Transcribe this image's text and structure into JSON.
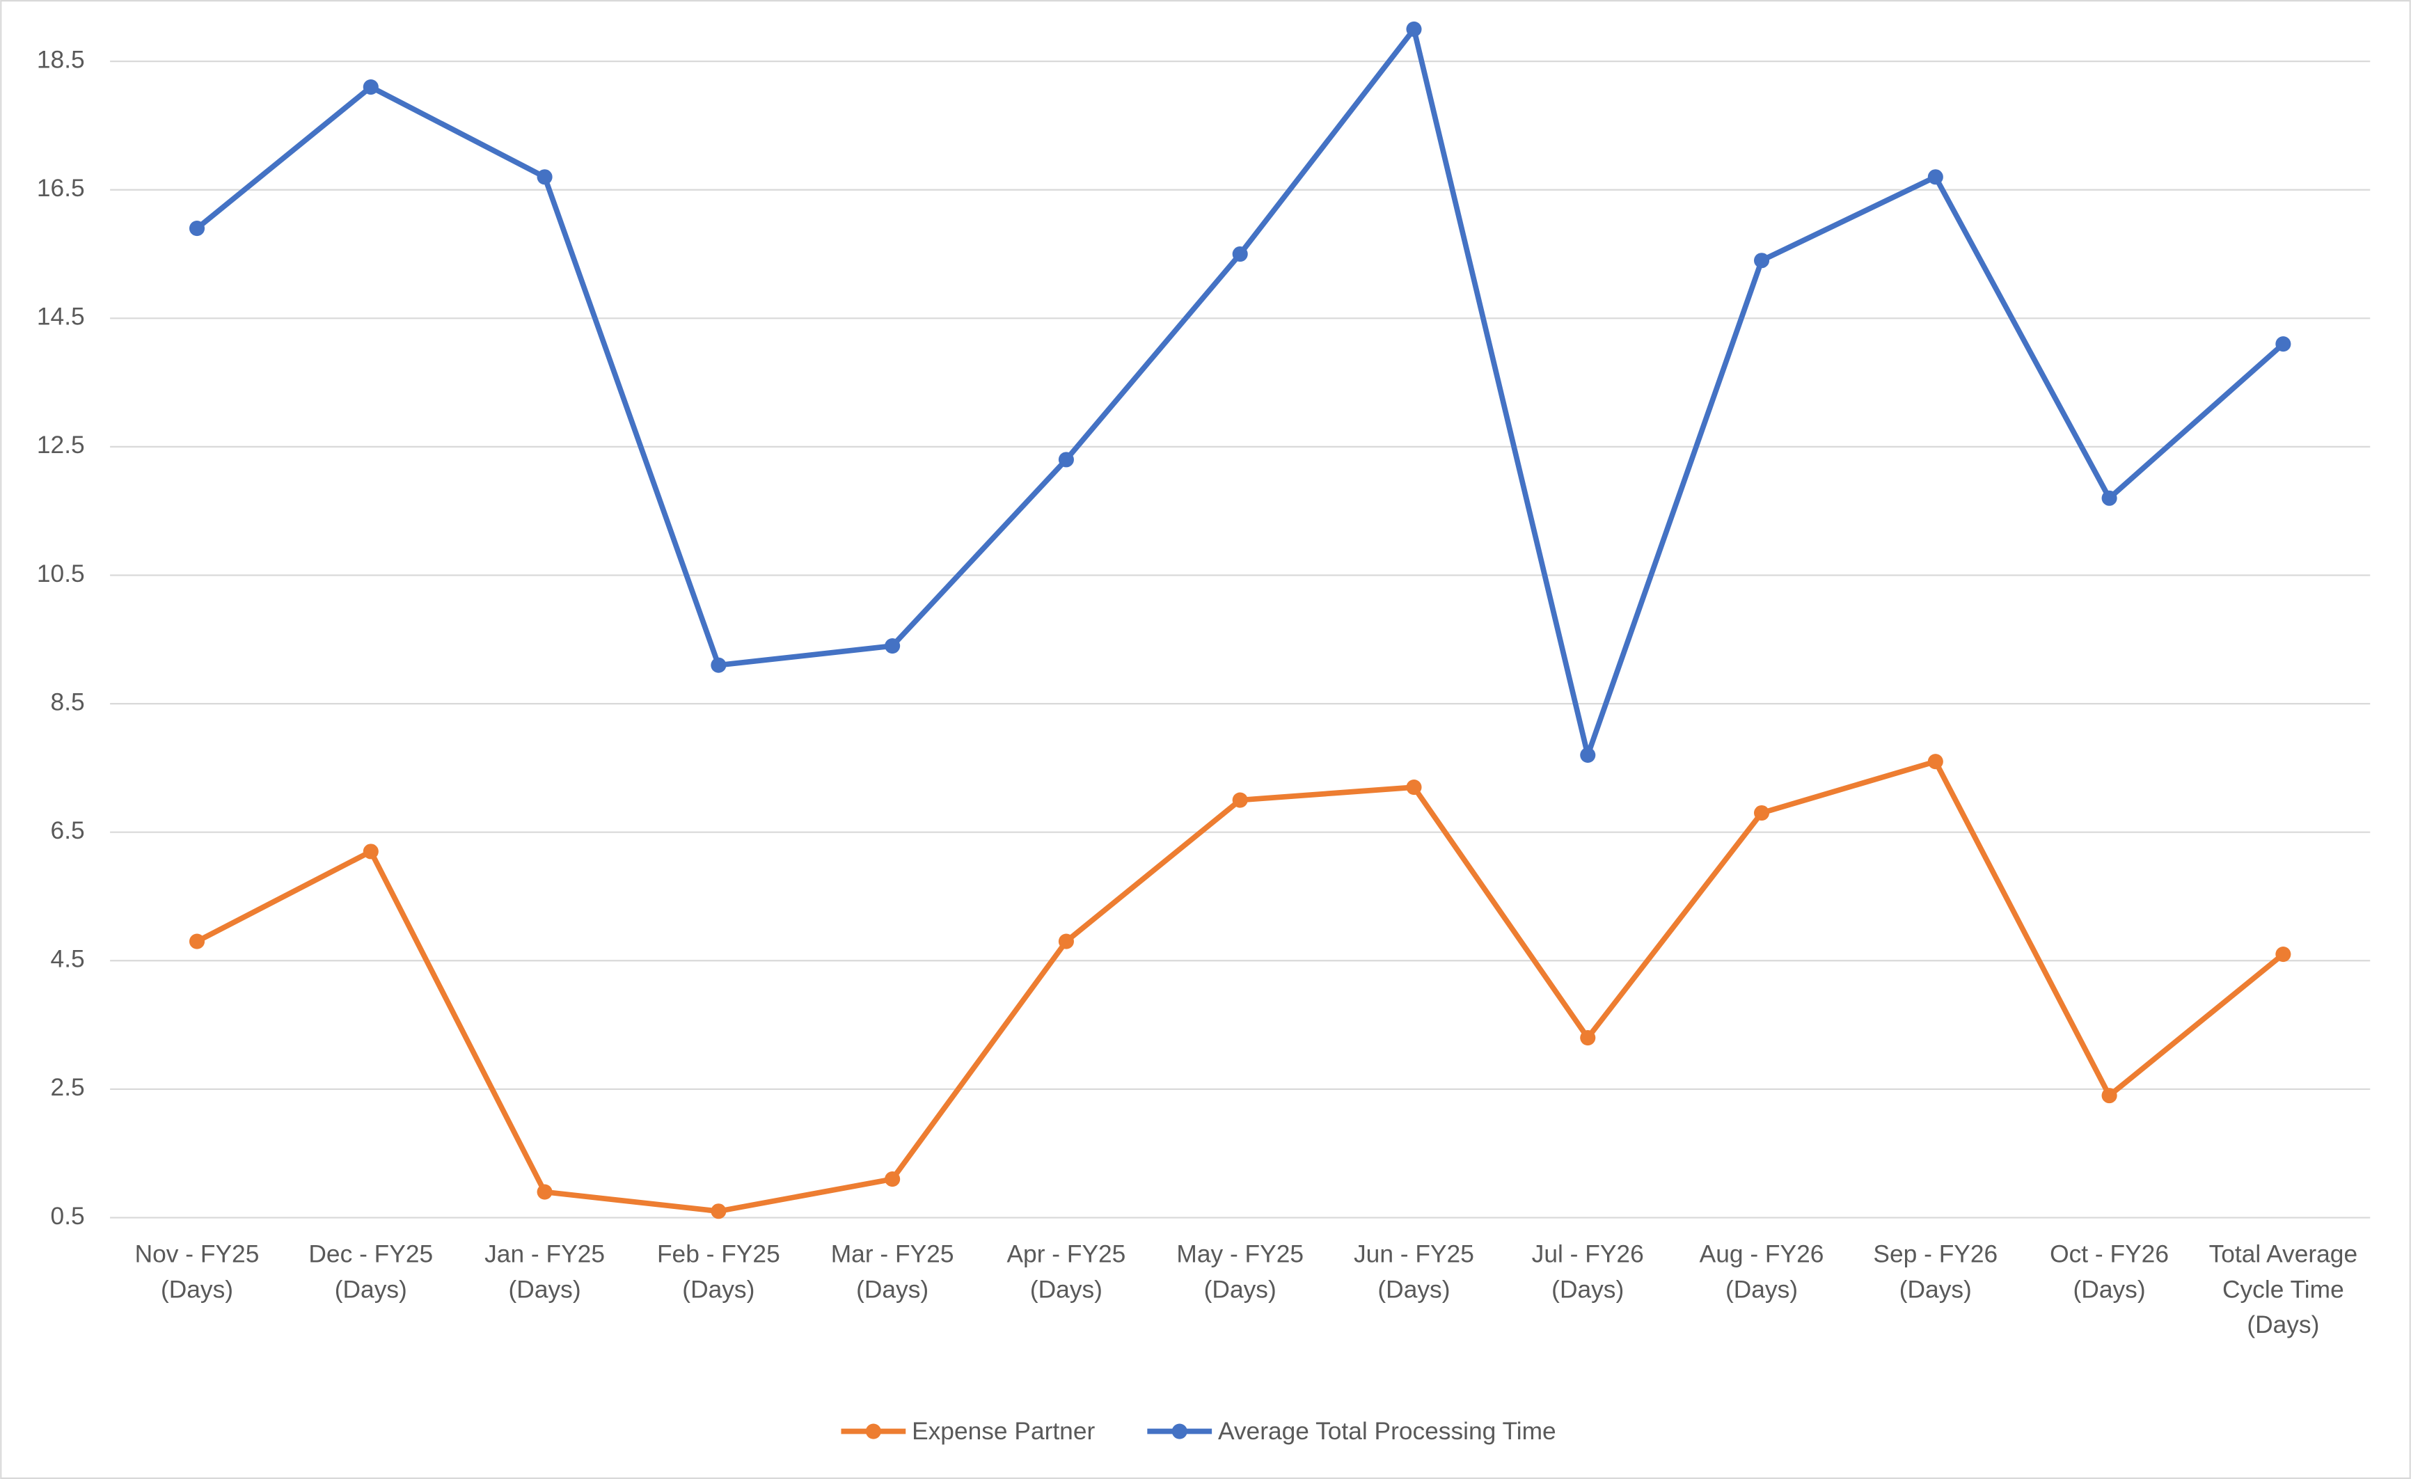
{
  "chart_data": {
    "type": "line",
    "categories": [
      "Nov - FY25 (Days)",
      "Dec - FY25 (Days)",
      "Jan - FY25 (Days)",
      "Feb - FY25 (Days)",
      "Mar - FY25 (Days)",
      "Apr - FY25 (Days)",
      "May - FY25 (Days)",
      "Jun - FY25 (Days)",
      "Jul - FY26 (Days)",
      "Aug - FY26 (Days)",
      "Sep - FY26 (Days)",
      "Oct - FY26 (Days)",
      "Total Average Cycle Time (Days)"
    ],
    "series": [
      {
        "name": "Expense Partner",
        "color": "#ed7d31",
        "values": [
          4.8,
          6.2,
          0.9,
          0.6,
          1.1,
          4.8,
          7.0,
          7.2,
          3.3,
          6.8,
          7.6,
          2.4,
          4.6
        ]
      },
      {
        "name": "Average Total Processing Time",
        "color": "#4472c4",
        "values": [
          15.9,
          18.1,
          16.7,
          9.1,
          9.4,
          12.3,
          15.5,
          19.0,
          7.7,
          15.4,
          16.7,
          11.7,
          14.1
        ]
      }
    ],
    "ylim": [
      0.5,
      19.0
    ],
    "yticks": [
      0.5,
      2.5,
      4.5,
      6.5,
      8.5,
      10.5,
      12.5,
      14.5,
      16.5,
      18.5
    ],
    "grid": true,
    "legend": "bottom"
  }
}
